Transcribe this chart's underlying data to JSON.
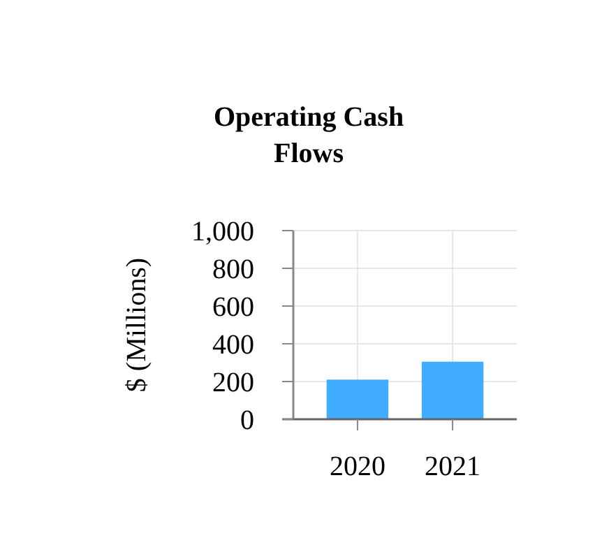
{
  "chart_data": {
    "type": "bar",
    "title": "Operating Cash Flows",
    "ylabel": "$ (Millions)",
    "categories": [
      "2020",
      "2021"
    ],
    "values": [
      210,
      305
    ],
    "color": "#42adff",
    "ylim": [
      0,
      1000
    ],
    "yticks": [
      0,
      200,
      400,
      600,
      800,
      {
        "value": 1000,
        "label": "1,000"
      }
    ],
    "grid": true
  }
}
